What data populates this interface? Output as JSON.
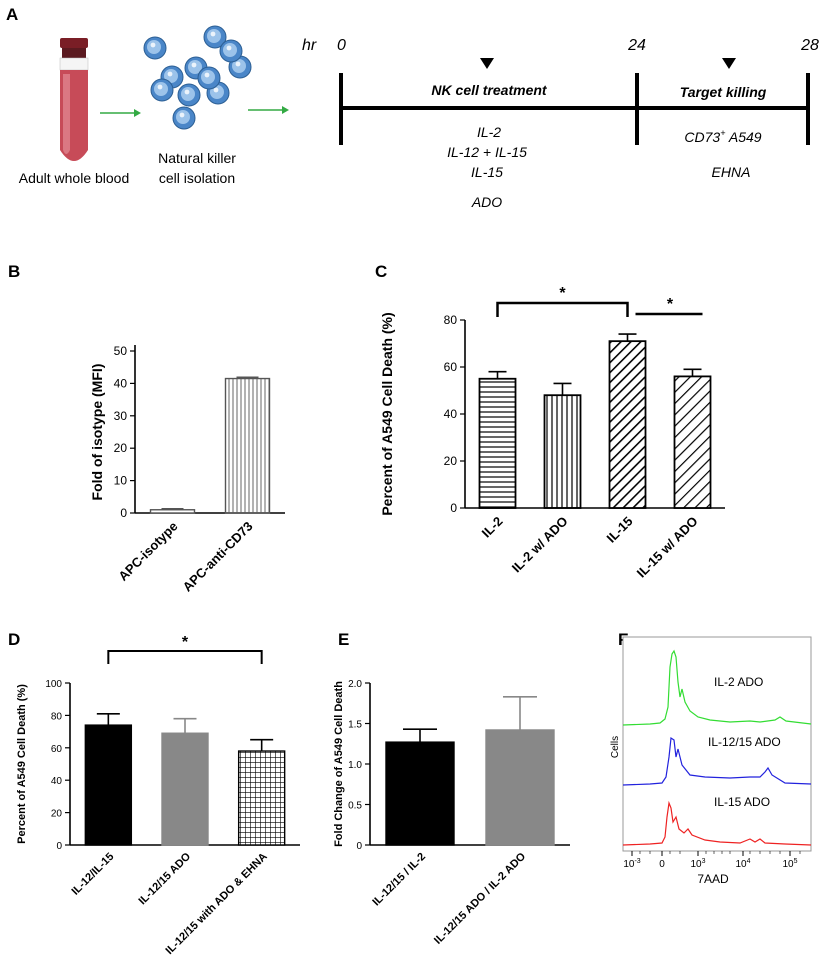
{
  "panel_a": {
    "label": "A",
    "blood_label": "Adult whole blood",
    "isolation_label_1": "Natural killer",
    "isolation_label_2": "cell isolation",
    "timeline": {
      "unit": "hr",
      "t0": "0",
      "t24": "24",
      "t28": "28",
      "phase1": "NK cell treatment",
      "phase2": "Target killing",
      "treatments": [
        "IL-2",
        "IL-12 + IL-15",
        "IL-15",
        "ADO"
      ],
      "target_1": "CD73",
      "target_sup": "+",
      "target_2": " A549",
      "inhibitor": "EHNA"
    }
  },
  "chart_data": [
    {
      "panel": "B",
      "type": "bar",
      "categories": [
        "APC-isotype",
        "APC-anti-CD73"
      ],
      "values": [
        1,
        41.5
      ],
      "errors": [
        0.3,
        0.4
      ],
      "ylabel": "Fold of isotype (MFI)",
      "ylim": [
        0,
        50
      ],
      "yticks": [
        "0",
        "10",
        "20",
        "30",
        "40",
        "50"
      ]
    },
    {
      "panel": "C",
      "type": "bar",
      "categories": [
        "IL-2",
        "IL-2 w/ ADO",
        "IL-15",
        "IL-15 w/ ADO"
      ],
      "values": [
        55,
        48,
        71,
        56
      ],
      "errors": [
        3,
        5,
        3,
        3
      ],
      "ylabel": "Percent of  A549  Cell  Death (%)",
      "ylim": [
        0,
        80
      ],
      "yticks": [
        "0",
        "20",
        "40",
        "60",
        "80"
      ],
      "annotations": [
        "*",
        "*"
      ]
    },
    {
      "panel": "D",
      "type": "bar",
      "categories": [
        "IL-12/IL-15",
        "IL-12/15 ADO",
        "IL-12/15 with ADO & EHNA"
      ],
      "values": [
        74,
        69,
        58
      ],
      "errors": [
        7,
        9,
        7
      ],
      "ylabel": "Percent of  A549  Cell  Death (%)",
      "ylim": [
        0,
        100
      ],
      "yticks": [
        "0",
        "20",
        "40",
        "60",
        "80",
        "100"
      ],
      "annotations": [
        "*"
      ]
    },
    {
      "panel": "E",
      "type": "bar",
      "categories": [
        "IL-12/15 / IL-2",
        "IL-12/15 ADO / IL-2 ADO"
      ],
      "values": [
        1.27,
        1.42
      ],
      "errors": [
        0.16,
        0.41
      ],
      "ylabel": "Fold Change of A549 Cell Death",
      "ylim": [
        0,
        2.0
      ],
      "yticks": [
        "0",
        "0.5",
        "1.0",
        "1.5",
        "2.0"
      ]
    },
    {
      "panel": "F",
      "type": "line",
      "series": [
        {
          "name": "IL-2 ADO",
          "color": "#33dd33"
        },
        {
          "name": "IL-12/15 ADO",
          "color": "#2222dd"
        },
        {
          "name": "IL-15 ADO",
          "color": "#ee2222"
        }
      ],
      "ylabel": "Cells",
      "xlabel": "7AAD",
      "xtick_base": "10",
      "xticks": [
        "-3",
        "0",
        "3",
        "4",
        "5"
      ]
    }
  ]
}
